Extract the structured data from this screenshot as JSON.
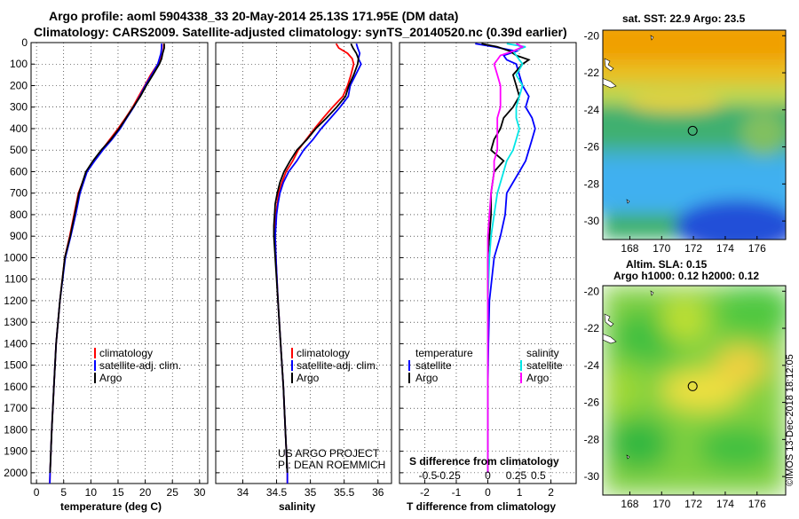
{
  "title": {
    "line1": "Argo profile: aoml 5904338_33 20-May-2014 25.13S 171.95E (DM data)",
    "line2": "Climatology: CARS2009. Satellite-adjusted climatology: synTS_20140520.nc (0.39d earlier)"
  },
  "chart_data": [
    {
      "type": "line",
      "name": "temperature",
      "xlabel": "temperature (deg C)",
      "xlim": [
        -1,
        31.5
      ],
      "xticks": [
        0,
        5,
        10,
        15,
        20,
        25,
        30
      ],
      "xtick_labels": [
        "0",
        "5",
        "10",
        "15",
        "20",
        "25",
        "30"
      ],
      "ylim": [
        0,
        2050
      ],
      "yticks": [
        0,
        100,
        200,
        300,
        400,
        500,
        600,
        700,
        800,
        900,
        1000,
        1100,
        1200,
        1300,
        1400,
        1500,
        1600,
        1700,
        1800,
        1900,
        2000
      ],
      "ytick_labels": [
        "0",
        "100",
        "200",
        "300",
        "400",
        "500",
        "600",
        "700",
        "800",
        "900",
        "1000",
        "1100",
        "1200",
        "1300",
        "1400",
        "1500",
        "1600",
        "1700",
        "1800",
        "1900",
        "2000"
      ],
      "legend": {
        "placement": "lower-right",
        "items": [
          "climatology",
          "satellite-adj. clim.",
          "Argo"
        ]
      },
      "series": [
        {
          "name": "climatology",
          "color": "#ff0000",
          "depth": [
            5,
            25,
            50,
            75,
            100,
            150,
            200,
            250,
            300,
            350,
            400,
            450,
            500,
            550,
            600,
            700,
            800,
            900,
            1000,
            1200,
            1400,
            1600,
            1800,
            2000,
            2050
          ],
          "values": [
            23.4,
            23.4,
            23.2,
            22.8,
            22.3,
            21.0,
            19.9,
            18.8,
            17.7,
            16.4,
            15.0,
            13.5,
            12.0,
            10.5,
            9.2,
            7.7,
            6.9,
            6.1,
            5.2,
            4.3,
            3.6,
            3.2,
            2.8,
            2.5,
            2.45
          ]
        },
        {
          "name": "satellite-adj. clim.",
          "color": "#0000ff",
          "depth": [
            5,
            25,
            50,
            75,
            100,
            150,
            200,
            250,
            300,
            350,
            400,
            450,
            500,
            550,
            600,
            700,
            800,
            900,
            1000,
            1200,
            1400,
            1600,
            1800,
            2000,
            2050
          ],
          "values": [
            23.0,
            23.0,
            22.9,
            22.6,
            22.3,
            21.2,
            20.0,
            19.0,
            17.9,
            16.6,
            15.4,
            13.9,
            12.2,
            10.7,
            9.3,
            8.0,
            7.2,
            6.3,
            5.3,
            4.3,
            3.6,
            3.2,
            2.8,
            2.5,
            2.45
          ]
        },
        {
          "name": "Argo",
          "color": "#000000",
          "depth": [
            5,
            25,
            50,
            75,
            100,
            150,
            200,
            250,
            300,
            350,
            400,
            450,
            500,
            550,
            600,
            700,
            800,
            900,
            1000,
            1200,
            1400,
            1600,
            1800,
            2000
          ],
          "values": [
            23.5,
            23.5,
            23.2,
            23.0,
            22.6,
            21.4,
            20.2,
            19.1,
            17.8,
            16.5,
            15.2,
            13.7,
            11.9,
            10.4,
            9.1,
            7.8,
            7.0,
            6.2,
            5.2,
            4.3,
            3.6,
            3.2,
            2.8,
            2.5
          ]
        }
      ]
    },
    {
      "type": "line",
      "name": "salinity",
      "xlabel": "salinity",
      "xlim": [
        33.6,
        36.2
      ],
      "xticks": [
        34,
        34.5,
        35,
        35.5,
        36
      ],
      "xtick_labels": [
        "34",
        "34.5",
        "35",
        "35.5",
        "36"
      ],
      "ylim": [
        0,
        2050
      ],
      "legend": {
        "placement": "lower-right",
        "items": [
          "climatology",
          "satellite-adj. clim.",
          "Argo"
        ]
      },
      "annotation": [
        "US ARGO PROJECT",
        "PI: DEAN ROEMMICH"
      ],
      "series": [
        {
          "name": "climatology",
          "color": "#ff0000",
          "depth": [
            5,
            25,
            50,
            75,
            100,
            150,
            200,
            250,
            300,
            350,
            400,
            450,
            500,
            550,
            600,
            650,
            700,
            750,
            800,
            850,
            900,
            1000,
            1200,
            1400,
            1600,
            1800,
            2000,
            2050
          ],
          "values": [
            35.38,
            35.42,
            35.55,
            35.62,
            35.64,
            35.6,
            35.55,
            35.48,
            35.33,
            35.19,
            35.06,
            34.94,
            34.82,
            34.74,
            34.64,
            34.58,
            34.53,
            34.51,
            34.49,
            34.48,
            34.48,
            34.49,
            34.52,
            34.56,
            34.6,
            34.63,
            34.66,
            34.66
          ]
        },
        {
          "name": "satellite-adj. clim.",
          "color": "#0000ff",
          "depth": [
            5,
            25,
            50,
            75,
            100,
            150,
            200,
            250,
            300,
            350,
            400,
            450,
            500,
            550,
            600,
            650,
            700,
            750,
            800,
            850,
            900,
            1000,
            1200,
            1400,
            1600,
            1800,
            2000,
            2050
          ],
          "values": [
            35.68,
            35.7,
            35.73,
            35.71,
            35.75,
            35.67,
            35.59,
            35.56,
            35.44,
            35.3,
            35.16,
            35.04,
            34.9,
            34.8,
            34.68,
            34.6,
            34.55,
            34.52,
            34.5,
            34.49,
            34.48,
            34.49,
            34.52,
            34.56,
            34.6,
            34.63,
            34.66,
            34.66
          ]
        },
        {
          "name": "Argo",
          "color": "#000000",
          "depth": [
            5,
            25,
            50,
            75,
            100,
            150,
            200,
            250,
            300,
            350,
            400,
            450,
            500,
            550,
            600,
            650,
            700,
            750,
            800,
            850,
            900,
            1000,
            1200,
            1400,
            1600,
            1800,
            2000
          ],
          "values": [
            35.6,
            35.63,
            35.68,
            35.71,
            35.7,
            35.64,
            35.57,
            35.52,
            35.39,
            35.24,
            35.08,
            34.95,
            34.8,
            34.7,
            34.61,
            34.55,
            34.51,
            34.48,
            34.47,
            34.46,
            34.46,
            34.48,
            34.52,
            34.56,
            34.6,
            34.63,
            34.66
          ]
        }
      ]
    },
    {
      "type": "line",
      "name": "difference",
      "xlabel": "T difference from climatology",
      "xlim": [
        -2.8,
        2.8
      ],
      "xticks": [
        -2,
        -1,
        0,
        1,
        2
      ],
      "xtick_labels": [
        "-2",
        "-1",
        "0",
        "1",
        "2"
      ],
      "s_axis_label": "S difference from climatology",
      "s_ticks_T_position": [
        -1.9,
        -1.25,
        0,
        0.9,
        1.6
      ],
      "s_tick_labels": [
        "-0.5",
        "-0.25",
        "0",
        "0.25",
        "0.5"
      ],
      "ylim": [
        0,
        2050
      ],
      "legend": {
        "placement": "lower",
        "temperature_header": "temperature",
        "salinity_header": "salinity",
        "items": [
          "satellite",
          "Argo"
        ]
      },
      "series": [
        {
          "name": "temperature satellite",
          "color": "#0000ff",
          "depth": [
            5,
            20,
            40,
            60,
            80,
            100,
            150,
            200,
            250,
            300,
            350,
            400,
            450,
            500,
            550,
            600,
            700,
            800,
            900,
            1000,
            1200,
            1400,
            1600,
            1800,
            2000
          ],
          "values": [
            -0.4,
            0.2,
            0.9,
            0.5,
            0.6,
            0.9,
            1.0,
            1.1,
            1.3,
            1.2,
            1.4,
            1.5,
            1.4,
            1.3,
            1.2,
            1.0,
            0.6,
            0.55,
            0.4,
            0.2,
            0.05,
            0.02,
            0.0,
            0.0,
            0.0
          ]
        },
        {
          "name": "temperature Argo",
          "color": "#000000",
          "depth": [
            5,
            20,
            40,
            60,
            80,
            100,
            150,
            200,
            250,
            300,
            350,
            400,
            450,
            500,
            550,
            600,
            700,
            800,
            900,
            1000,
            1200,
            1400,
            1600,
            1800,
            2000
          ],
          "values": [
            -0.2,
            0.3,
            0.7,
            0.9,
            1.3,
            1.1,
            0.8,
            0.9,
            1.0,
            0.8,
            0.5,
            0.4,
            0.2,
            0.1,
            0.5,
            0.2,
            0.1,
            0.1,
            0.05,
            0.0,
            0.0,
            0.0,
            0.0,
            0.0,
            0.0
          ]
        },
        {
          "name": "salinity satellite",
          "color": "#00e6e6",
          "depth": [
            5,
            20,
            40,
            60,
            80,
            100,
            150,
            200,
            250,
            300,
            350,
            400,
            450,
            500,
            550,
            600,
            700,
            800,
            900,
            1000,
            1200,
            1400,
            1600,
            1800,
            2000
          ],
          "values": [
            0.6,
            1.2,
            0.8,
            0.9,
            1.0,
            1.1,
            0.9,
            1.1,
            1.0,
            0.9,
            0.9,
            1.0,
            0.9,
            0.8,
            0.6,
            0.5,
            0.3,
            0.2,
            0.1,
            0.05,
            0.0,
            0.0,
            0.0,
            0.0,
            0.0
          ]
        },
        {
          "name": "salinity Argo",
          "color": "#ff00ff",
          "depth": [
            5,
            20,
            40,
            60,
            80,
            100,
            150,
            200,
            250,
            300,
            350,
            400,
            450,
            500,
            550,
            600,
            700,
            800,
            900,
            1000,
            1200,
            1400,
            1600,
            1800,
            2000
          ],
          "values": [
            0.9,
            1.1,
            0.8,
            0.4,
            0.3,
            0.2,
            0.3,
            0.4,
            0.4,
            0.4,
            0.3,
            0.3,
            0.3,
            0.3,
            0.2,
            0.2,
            0.1,
            0.05,
            0.0,
            0.0,
            0.0,
            0.0,
            0.0,
            0.0,
            0.0
          ]
        }
      ]
    },
    {
      "type": "heatmap",
      "name": "sst-map",
      "title": "sat. SST: 22.9 Argo: 23.5",
      "xlim": [
        166.3,
        177.8
      ],
      "ylim": [
        -31,
        -19.7
      ],
      "xticks": [
        168,
        170,
        172,
        174,
        176
      ],
      "xtick_labels": [
        "168",
        "170",
        "172",
        "174",
        "176"
      ],
      "yticks": [
        -20,
        -22,
        -24,
        -26,
        -28,
        -30
      ],
      "ytick_labels": [
        "-20",
        "-22",
        "-24",
        "-26",
        "-28",
        "-30"
      ],
      "marker": {
        "lon": 171.95,
        "lat": -25.13
      },
      "colors": [
        "#f0a000",
        "#f6c800",
        "#d8dc40",
        "#7ec070",
        "#40b070",
        "#30a8a0",
        "#40b0f0",
        "#1070e0",
        "#2040d0"
      ]
    },
    {
      "type": "heatmap",
      "name": "sla-map",
      "title_line1": "Altim. SLA: 0.15",
      "title_line2": "Argo h1000: 0.12 h2000: 0.12",
      "xlim": [
        166.3,
        177.8
      ],
      "ylim": [
        -31,
        -19.7
      ],
      "xticks": [
        168,
        170,
        172,
        174,
        176
      ],
      "xtick_labels": [
        "168",
        "170",
        "172",
        "174",
        "176"
      ],
      "yticks": [
        -20,
        -22,
        -24,
        -26,
        -28,
        -30
      ],
      "ytick_labels": [
        "-20",
        "-22",
        "-24",
        "-26",
        "-28",
        "-30"
      ],
      "marker": {
        "lon": 171.95,
        "lat": -25.13
      },
      "colors": [
        "#30c040",
        "#70d030",
        "#b8e030",
        "#f0e030",
        "#f0c040"
      ]
    }
  ],
  "footer": {
    "credit": "©IMOS 13-Dec-2018 18:12:05"
  }
}
